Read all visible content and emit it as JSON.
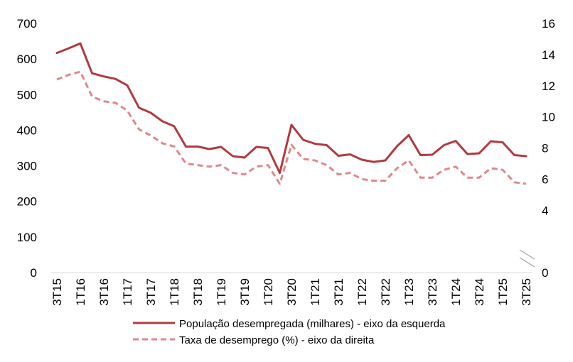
{
  "chart_data": {
    "type": "line",
    "x": [
      "3T15",
      "4T15",
      "1T16",
      "2T16",
      "3T16",
      "4T16",
      "1T17",
      "2T17",
      "3T17",
      "4T17",
      "1T18",
      "2T18",
      "3T18",
      "4T18",
      "1T19",
      "2T19",
      "3T19",
      "4T19",
      "1T20",
      "2T20",
      "3T20",
      "4T20",
      "1T21",
      "2T21",
      "3T21",
      "4T21",
      "1T22",
      "2T22",
      "3T22",
      "4T22",
      "1T23",
      "2T23",
      "3T23",
      "4T23",
      "1T24",
      "2T24",
      "3T24",
      "4T24",
      "1T25",
      "2T25",
      "3T25"
    ],
    "tick_labels": [
      "3T15",
      "1T16",
      "3T16",
      "1T17",
      "3T17",
      "1T18",
      "3T18",
      "1T19",
      "3T19",
      "1T20",
      "3T20",
      "1T21",
      "3T21",
      "1T22",
      "3T22",
      "1T23",
      "3T23",
      "1T24",
      "3T24",
      "1T25",
      "3T25"
    ],
    "series": [
      {
        "name": "População desempregada (milhares) - eixo da esquerda",
        "axis": "left",
        "color": "#b13a3f",
        "style": "solid",
        "values": [
          617,
          630,
          644,
          560,
          551,
          544,
          526,
          463,
          449,
          425,
          411,
          354,
          354,
          347,
          353,
          327,
          323,
          353,
          350,
          280,
          415,
          373,
          362,
          358,
          328,
          332,
          317,
          311,
          315,
          355,
          386,
          330,
          331,
          358,
          370,
          333,
          335,
          369,
          366,
          330,
          327
        ]
      },
      {
        "name": "Taxa de desemprego (%) - eixo da direita",
        "axis": "right",
        "color": "#e0888b",
        "style": "dashed",
        "values": [
          12.4,
          12.7,
          12.9,
          11.3,
          11.0,
          10.9,
          10.4,
          9.2,
          8.8,
          8.3,
          8.1,
          7.0,
          6.9,
          6.8,
          6.9,
          6.4,
          6.3,
          6.8,
          6.9,
          5.7,
          8.2,
          7.3,
          7.2,
          6.9,
          6.3,
          6.4,
          6.0,
          5.9,
          5.9,
          6.7,
          7.2,
          6.1,
          6.1,
          6.6,
          6.8,
          6.1,
          6.1,
          6.7,
          6.6,
          5.8,
          5.7
        ]
      }
    ],
    "left_axis": {
      "min": 0,
      "max": 700,
      "ticks": [
        "0",
        "100",
        "200",
        "300",
        "400",
        "500",
        "600",
        "700"
      ]
    },
    "right_axis": {
      "min": 0,
      "max": 16,
      "ticks": [
        "0",
        "4",
        "6",
        "8",
        "10",
        "12",
        "14",
        "16"
      ],
      "broken": true
    },
    "legend_position": "bottom",
    "grid": false
  }
}
